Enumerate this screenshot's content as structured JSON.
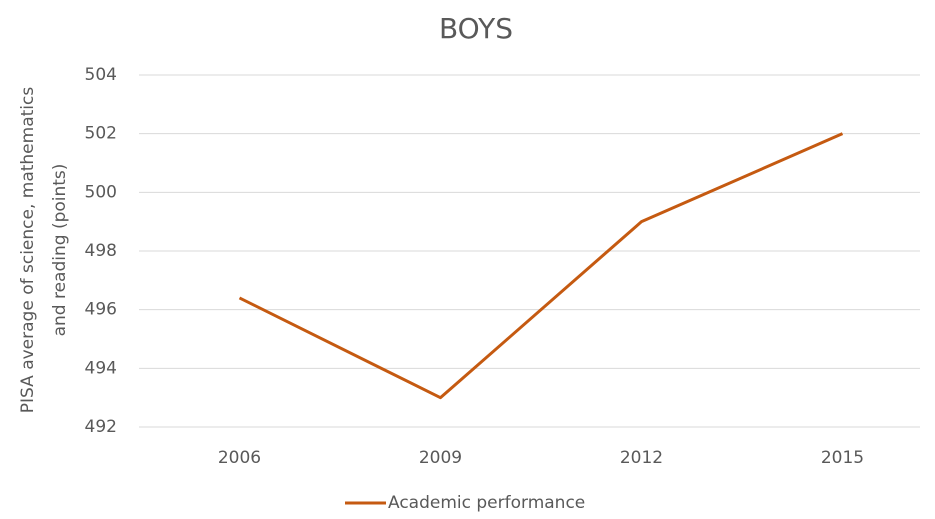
{
  "chart_data": {
    "type": "line",
    "title": "BOYS",
    "ylabel": [
      "PISA average of science, mathematics",
      "and reading (points)"
    ],
    "categories": [
      "2006",
      "2009",
      "2012",
      "2015"
    ],
    "series": [
      {
        "name": "Academic performance",
        "color": "#c55a11",
        "values": [
          496.4,
          493.0,
          499.0,
          502.0
        ]
      }
    ],
    "ylim": [
      492,
      504
    ],
    "yticks": [
      492,
      494,
      496,
      498,
      500,
      502,
      504
    ],
    "grid": true,
    "legend": "bottom"
  }
}
